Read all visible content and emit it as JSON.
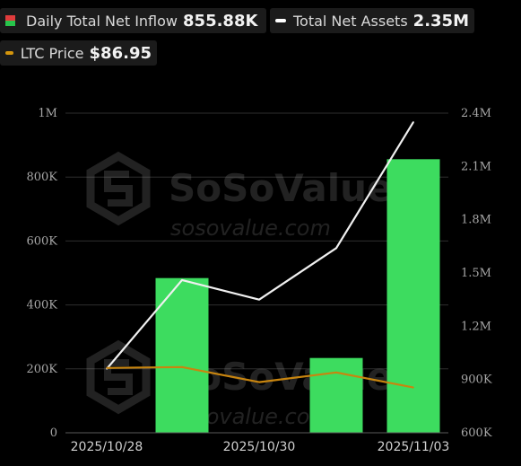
{
  "legend": [
    {
      "label": "Daily Total Net Inflow",
      "value": "855.88K",
      "swatch": "bar",
      "color_top": "#e03c3c",
      "color_bottom": "#27c44b"
    },
    {
      "label": "Total Net Assets",
      "value": "2.35M",
      "swatch": "line",
      "color": "#ffffff"
    },
    {
      "label": "LTC Price",
      "value": "$86.95",
      "swatch": "line",
      "color": "#d4950c"
    }
  ],
  "watermark": {
    "brand": "SoSoValue",
    "url": "sosovalue.com"
  },
  "colors": {
    "bar": "#3ddc5f",
    "assets_line": "#f0f0f0",
    "price_line": "#c8850f",
    "grid": "#2e2e2e"
  },
  "chart_data": {
    "type": "bar",
    "x_tick_labels": [
      "2025/10/28",
      "2025/10/30",
      "2025/11/03"
    ],
    "x": [
      "2025/10/28",
      "2025/10/29",
      "2025/10/30",
      "2025/10/31",
      "2025/11/03"
    ],
    "series": [
      {
        "name": "Daily Total Net Inflow",
        "type": "bar",
        "axis": "left",
        "values": [
          0,
          484000,
          0,
          234000,
          855880
        ]
      },
      {
        "name": "Total Net Assets",
        "type": "line",
        "axis": "right",
        "values": [
          960000,
          1460000,
          1350000,
          1640000,
          2350000
        ]
      },
      {
        "name": "LTC Price",
        "type": "line",
        "axis": "right",
        "values": [
          965000,
          970000,
          885000,
          940000,
          855000
        ]
      }
    ],
    "y_left": {
      "ticks": [
        "0",
        "200K",
        "400K",
        "600K",
        "800K",
        "1M"
      ],
      "lim": [
        0,
        1000000
      ]
    },
    "y_right": {
      "ticks": [
        "600K",
        "900K",
        "1.2M",
        "1.5M",
        "1.8M",
        "2.1M",
        "2.4M"
      ],
      "lim": [
        600000,
        2400000
      ]
    },
    "grid": true
  }
}
